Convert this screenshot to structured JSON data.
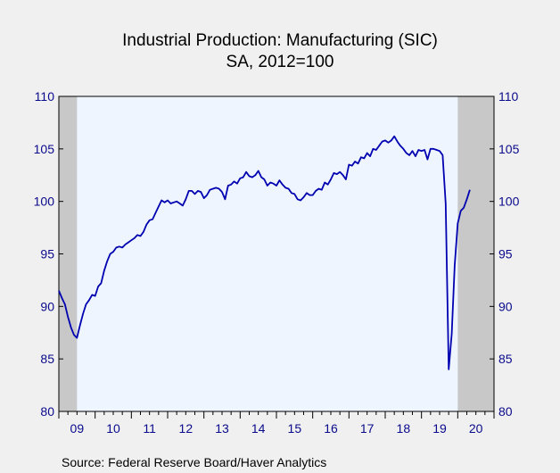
{
  "chart_data": {
    "type": "line",
    "title": "Industrial Production: Manufacturing (SIC)",
    "subtitle": "SA, 2012=100",
    "source": "Source:  Federal Reserve Board/Haver Analytics",
    "ylim": [
      80,
      110
    ],
    "yticks": [
      80,
      85,
      90,
      95,
      100,
      105,
      110
    ],
    "xlim": [
      2009.0,
      2021.0
    ],
    "x_tick_labels": [
      "09",
      "10",
      "11",
      "12",
      "13",
      "14",
      "15",
      "16",
      "17",
      "18",
      "19",
      "20"
    ],
    "grid": false,
    "background": "#eef5ff",
    "line_color": "#0000b0",
    "recession_color": "#c8c8c8",
    "recessions": [
      [
        2009.0,
        2009.5
      ],
      [
        2020.0,
        2021.0
      ]
    ],
    "series": [
      {
        "x_start": 2009.0,
        "step": 0.0833333,
        "values": [
          91.5,
          90.8,
          90.2,
          89.0,
          88.0,
          87.3,
          87.0,
          88.2,
          89.3,
          90.2,
          90.6,
          91.1,
          91.0,
          91.9,
          92.2,
          93.4,
          94.3,
          95.0,
          95.2,
          95.6,
          95.7,
          95.6,
          95.9,
          96.1,
          96.3,
          96.5,
          96.8,
          96.7,
          97.1,
          97.8,
          98.2,
          98.3,
          98.9,
          99.5,
          100.1,
          99.9,
          100.1,
          99.8,
          99.9,
          100.0,
          99.8,
          99.6,
          100.2,
          101.0,
          101.0,
          100.7,
          101.0,
          100.9,
          100.3,
          100.6,
          101.1,
          101.2,
          101.3,
          101.2,
          100.9,
          100.2,
          101.5,
          101.6,
          101.9,
          101.7,
          102.2,
          102.3,
          102.8,
          102.4,
          102.3,
          102.5,
          102.9,
          102.3,
          102.1,
          101.5,
          101.8,
          101.7,
          101.5,
          102.0,
          101.6,
          101.3,
          101.2,
          100.8,
          100.7,
          100.2,
          100.1,
          100.4,
          100.8,
          100.6,
          100.6,
          101.0,
          101.2,
          101.1,
          101.8,
          101.6,
          102.1,
          102.7,
          102.6,
          102.8,
          102.5,
          102.1,
          103.5,
          103.4,
          103.8,
          103.6,
          104.2,
          104.1,
          104.6,
          104.3,
          105.0,
          104.9,
          105.3,
          105.7,
          105.8,
          105.6,
          105.8,
          106.2,
          105.7,
          105.3,
          105.0,
          104.6,
          104.4,
          104.8,
          104.3,
          104.9,
          104.8,
          104.9,
          104.0,
          105.0,
          105.0,
          104.9,
          104.8,
          104.4,
          99.8,
          84.0,
          87.4,
          93.9,
          97.9,
          99.1,
          99.4,
          100.2,
          101.1
        ]
      }
    ]
  }
}
